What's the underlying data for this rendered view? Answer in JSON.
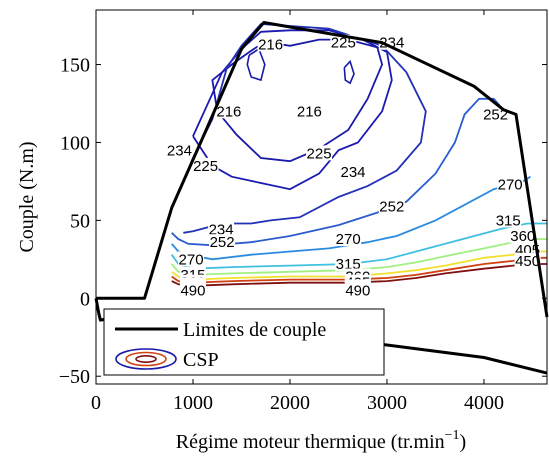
{
  "chart_data": {
    "type": "contour",
    "xlabel": "Régime moteur thermique (tr.min",
    "xlabel_sup": "−1",
    "xlabel_close": ")",
    "ylabel": "Couple (N.m)",
    "xlim": [
      0,
      4650
    ],
    "ylim": [
      -55,
      185
    ],
    "xticks": [
      0,
      1000,
      2000,
      3000,
      4000
    ],
    "yticks": [
      -50,
      0,
      50,
      100,
      150
    ],
    "grid": false,
    "legend_position": "bottom-left",
    "legend": [
      {
        "label": "Limites de couple",
        "color": "#000000"
      },
      {
        "label": "CSP",
        "colors": [
          "#1a1aa8",
          "#d04010",
          "#801010"
        ]
      }
    ],
    "torque_limit_max": [
      {
        "x": 0,
        "y": 0
      },
      {
        "x": 500,
        "y": 0
      },
      {
        "x": 780,
        "y": 58
      },
      {
        "x": 1150,
        "y": 110
      },
      {
        "x": 1500,
        "y": 160
      },
      {
        "x": 1730,
        "y": 177
      },
      {
        "x": 2950,
        "y": 164
      },
      {
        "x": 3900,
        "y": 136
      },
      {
        "x": 4200,
        "y": 121
      },
      {
        "x": 4330,
        "y": 118
      },
      {
        "x": 4650,
        "y": -12
      }
    ],
    "torque_limit_min": [
      {
        "x": 0,
        "y": 0
      },
      {
        "x": 30,
        "y": -10
      },
      {
        "x": 45,
        "y": -14
      },
      {
        "x": 200,
        "y": -12
      },
      {
        "x": 1000,
        "y": -17
      },
      {
        "x": 2000,
        "y": -23
      },
      {
        "x": 3000,
        "y": -30
      },
      {
        "x": 4000,
        "y": -38
      },
      {
        "x": 4650,
        "y": -48
      }
    ],
    "contour_levels": [
      {
        "level": 216,
        "label": "216",
        "color": "#1a1aa8",
        "paths": [
          [
            [
              1580,
              158
            ],
            [
              1700,
              163
            ],
            [
              1800,
              164
            ],
            [
              2000,
              162
            ],
            [
              2300,
              166
            ],
            [
              2600,
              166
            ],
            [
              2900,
              161
            ],
            [
              2950,
              150
            ],
            [
              2800,
              128
            ],
            [
              2600,
              108
            ],
            [
              2300,
              96
            ],
            [
              2000,
              88
            ],
            [
              1700,
              90
            ],
            [
              1450,
              105
            ],
            [
              1250,
              120
            ],
            [
              1200,
              140
            ],
            [
              1400,
              150
            ],
            [
              1580,
              158
            ]
          ]
        ],
        "labels": [
          {
            "x": 1800,
            "y": 163
          },
          {
            "x": 1370,
            "y": 120
          },
          {
            "x": 2200,
            "y": 120
          }
        ]
      },
      {
        "level": 225,
        "label": "225",
        "color": "#1c1ab0",
        "paths": [
          [
            [
              1000,
              104
            ],
            [
              1300,
              145
            ],
            [
              1500,
              160
            ],
            [
              1700,
              171
            ],
            [
              2000,
              172
            ],
            [
              2400,
              172
            ],
            [
              2750,
              166
            ],
            [
              3000,
              158
            ],
            [
              3050,
              140
            ],
            [
              2950,
              120
            ],
            [
              2700,
              100
            ],
            [
              2500,
              95
            ],
            [
              2300,
              80
            ],
            [
              2000,
              70
            ],
            [
              1700,
              74
            ],
            [
              1400,
              78
            ],
            [
              1200,
              85
            ],
            [
              1000,
              104
            ]
          ]
        ],
        "labels": [
          {
            "x": 2550,
            "y": 164
          },
          {
            "x": 1130,
            "y": 85
          },
          {
            "x": 2300,
            "y": 93
          }
        ]
      },
      {
        "level": 234,
        "label": "234",
        "color": "#2330b8",
        "paths": [
          [
            [
              780,
              58
            ],
            [
              900,
              75
            ],
            [
              1000,
              90
            ],
            [
              1200,
              115
            ],
            [
              1350,
              148
            ],
            [
              1500,
              162
            ],
            [
              1700,
              176
            ],
            [
              2400,
              173
            ],
            [
              2950,
              162
            ],
            [
              3200,
              145
            ],
            [
              3400,
              120
            ],
            [
              3350,
              100
            ],
            [
              3100,
              82
            ],
            [
              2800,
              72
            ],
            [
              2500,
              65
            ],
            [
              2100,
              52
            ],
            [
              1800,
              50
            ],
            [
              1600,
              48
            ],
            [
              1300,
              48
            ],
            [
              1000,
              43
            ],
            [
              900,
              42
            ]
          ]
        ],
        "labels": [
          {
            "x": 3050,
            "y": 164
          },
          {
            "x": 860,
            "y": 95
          },
          {
            "x": 2650,
            "y": 81
          },
          {
            "x": 1290,
            "y": 44
          }
        ]
      },
      {
        "level": 252,
        "label": "252",
        "color": "#2a5cd0",
        "paths": [
          [
            [
              780,
              42
            ],
            [
              850,
              38
            ],
            [
              950,
              35
            ],
            [
              1200,
              34
            ],
            [
              1600,
              36
            ],
            [
              2000,
              40
            ],
            [
              2500,
              47
            ],
            [
              2900,
              55
            ],
            [
              3200,
              62
            ],
            [
              3500,
              80
            ],
            [
              3700,
              100
            ],
            [
              3800,
              118
            ],
            [
              3950,
              128
            ],
            [
              4100,
              128
            ],
            [
              4200,
              121
            ]
          ]
        ],
        "labels": [
          {
            "x": 1300,
            "y": 36
          },
          {
            "x": 3050,
            "y": 59
          },
          {
            "x": 4120,
            "y": 118
          }
        ]
      },
      {
        "level": 270,
        "label": "270",
        "color": "#2a8ae0",
        "paths": [
          [
            [
              780,
              35
            ],
            [
              850,
              30
            ],
            [
              950,
              28
            ],
            [
              1200,
              25
            ],
            [
              1600,
              28
            ],
            [
              2000,
              30
            ],
            [
              2400,
              32
            ],
            [
              2800,
              36
            ],
            [
              3100,
              40
            ],
            [
              3500,
              50
            ],
            [
              3800,
              60
            ],
            [
              4100,
              70
            ],
            [
              4400,
              75
            ],
            [
              4480,
              78
            ]
          ]
        ],
        "labels": [
          {
            "x": 980,
            "y": 25
          },
          {
            "x": 2600,
            "y": 38
          },
          {
            "x": 4270,
            "y": 73
          }
        ]
      },
      {
        "level": 315,
        "label": "315",
        "color": "#40c0e0",
        "paths": [
          [
            [
              780,
              28
            ],
            [
              850,
              22
            ],
            [
              1000,
              19
            ],
            [
              1400,
              20
            ],
            [
              2000,
              21
            ],
            [
              2600,
              22
            ],
            [
              3000,
              25
            ],
            [
              3300,
              30
            ],
            [
              3600,
              35
            ],
            [
              3900,
              40
            ],
            [
              4200,
              45
            ],
            [
              4450,
              48
            ],
            [
              4650,
              48
            ]
          ]
        ],
        "labels": [
          {
            "x": 1000,
            "y": 15
          },
          {
            "x": 2600,
            "y": 22
          },
          {
            "x": 4250,
            "y": 50
          }
        ]
      },
      {
        "level": 360,
        "label": "360",
        "color": "#a0f080",
        "paths": [
          [
            [
              780,
              22
            ],
            [
              850,
              17
            ],
            [
              1000,
              15
            ],
            [
              1400,
              16
            ],
            [
              2000,
              17
            ],
            [
              2600,
              18
            ],
            [
              3000,
              20
            ],
            [
              3300,
              23
            ],
            [
              3600,
              27
            ],
            [
              4000,
              32
            ],
            [
              4300,
              36
            ],
            [
              4500,
              38
            ],
            [
              4650,
              38
            ]
          ]
        ],
        "labels": [
          {
            "x": 1000,
            "y": 10
          },
          {
            "x": 2700,
            "y": 14
          },
          {
            "x": 4400,
            "y": 40
          }
        ]
      },
      {
        "level": 405,
        "label": "405",
        "color": "#f0e030",
        "paths": [
          [
            [
              780,
              17
            ],
            [
              850,
              14
            ],
            [
              1000,
              12
            ],
            [
              1400,
              13
            ],
            [
              2000,
              14
            ],
            [
              2600,
              14
            ],
            [
              3000,
              16
            ],
            [
              3300,
              18
            ],
            [
              3600,
              21
            ],
            [
              4000,
              26
            ],
            [
              4300,
              28
            ],
            [
              4500,
              30
            ],
            [
              4650,
              30
            ]
          ]
        ],
        "labels": [
          {
            "x": 1000,
            "y": 8
          },
          {
            "x": 2700,
            "y": 10
          },
          {
            "x": 4450,
            "y": 31
          }
        ]
      },
      {
        "level": 450,
        "label": "450",
        "color": "#d04010",
        "paths": [
          [
            [
              780,
              14
            ],
            [
              850,
              11
            ],
            [
              1000,
              10
            ],
            [
              1400,
              11
            ],
            [
              2000,
              12
            ],
            [
              2600,
              12
            ],
            [
              3000,
              13
            ],
            [
              3300,
              15
            ],
            [
              3600,
              18
            ],
            [
              4000,
              22
            ],
            [
              4300,
              24
            ],
            [
              4500,
              26
            ],
            [
              4650,
              26
            ]
          ]
        ],
        "labels": [
          {
            "x": 1000,
            "y": 6
          },
          {
            "x": 2700,
            "y": 7
          },
          {
            "x": 4450,
            "y": 24
          }
        ]
      },
      {
        "level": 490,
        "label": "490",
        "color": "#801010",
        "paths": [
          [
            [
              780,
              11
            ],
            [
              850,
              9
            ],
            [
              1000,
              8
            ],
            [
              1400,
              9
            ],
            [
              2000,
              10
            ],
            [
              2600,
              10
            ],
            [
              3000,
              11
            ],
            [
              3300,
              13
            ],
            [
              3600,
              16
            ],
            [
              4000,
              19
            ],
            [
              4300,
              21
            ],
            [
              4500,
              22
            ],
            [
              4650,
              22
            ]
          ]
        ],
        "labels": [
          {
            "x": 1000,
            "y": 5
          },
          {
            "x": 2700,
            "y": 5
          }
        ]
      }
    ],
    "extra_rings": [
      {
        "color": "#1a1aa8",
        "path": [
          [
            1580,
            156
          ],
          [
            1680,
            160
          ],
          [
            1740,
            150
          ],
          [
            1700,
            140
          ],
          [
            1600,
            142
          ],
          [
            1560,
            150
          ],
          [
            1580,
            156
          ]
        ]
      },
      {
        "color": "#1a1aa8",
        "path": [
          [
            2560,
            148
          ],
          [
            2620,
            152
          ],
          [
            2660,
            144
          ],
          [
            2620,
            138
          ],
          [
            2570,
            140
          ],
          [
            2560,
            148
          ]
        ]
      }
    ]
  }
}
